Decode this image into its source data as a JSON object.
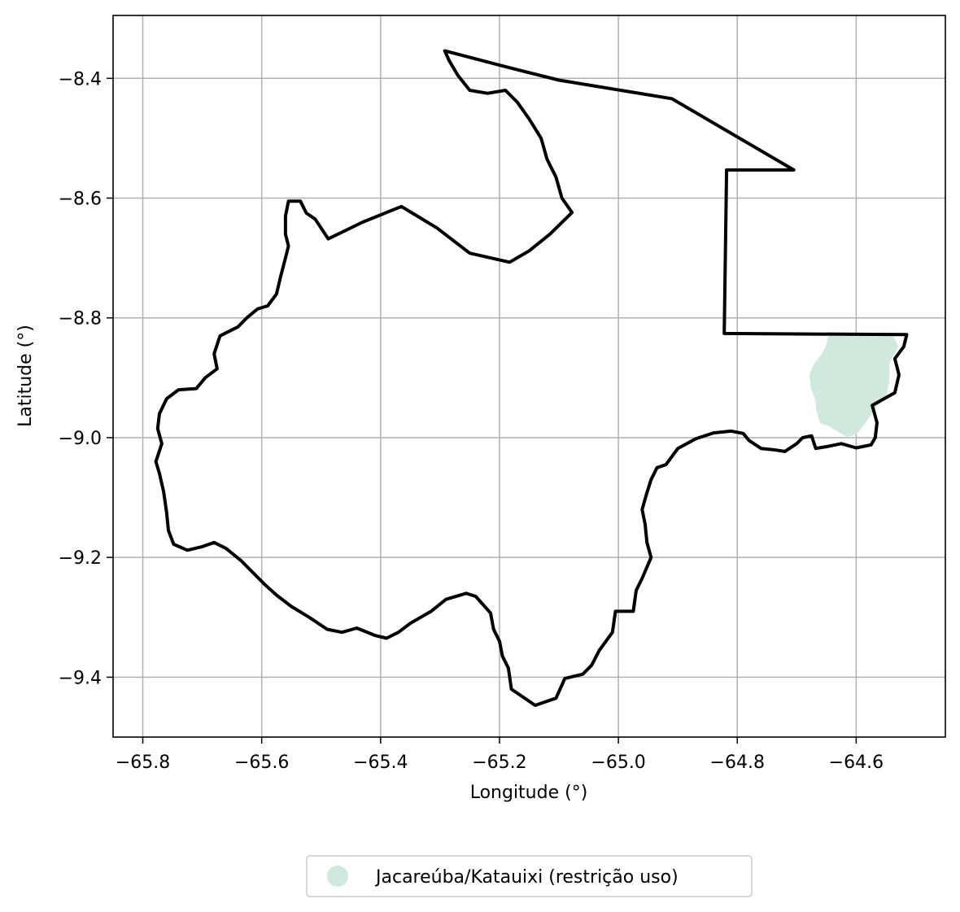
{
  "chart_data": {
    "type": "map",
    "title": "",
    "xlabel": "Longitude (°)",
    "ylabel": "Latitude (°)",
    "xlim": [
      -65.85,
      -64.45
    ],
    "ylim": [
      -9.5,
      -8.295
    ],
    "grid": true,
    "x_ticks": [
      -65.8,
      -65.6,
      -65.4,
      -65.2,
      -65.0,
      -64.8,
      -64.6
    ],
    "x_tick_labels": [
      "−65.8",
      "−65.6",
      "−65.4",
      "−65.2",
      "−65.0",
      "−64.8",
      "−64.6"
    ],
    "y_ticks": [
      -8.4,
      -8.6,
      -8.8,
      -9.0,
      -9.2,
      -9.4
    ],
    "y_tick_labels": [
      "−8.4",
      "−8.6",
      "−8.8",
      "−9.0",
      "−9.2",
      "−9.4"
    ],
    "legend": {
      "placement": "bottom-center, below plot",
      "entries": [
        {
          "label": "Jacareúba/Katauixi (restrição uso)",
          "color": "#cfeadc"
        }
      ]
    },
    "colors": {
      "boundary": "#000000",
      "area_fill": "#cfeadc",
      "grid": "#b0b0b0"
    },
    "layers": [
      {
        "name": "Jacareúba/Katauixi (restrição uso)",
        "kind": "filled-area",
        "color": "#cfeadc",
        "coords": [
          [
            -64.645,
            -8.827
          ],
          [
            -64.54,
            -8.828
          ],
          [
            -64.53,
            -8.848
          ],
          [
            -64.545,
            -8.875
          ],
          [
            -64.545,
            -8.905
          ],
          [
            -64.55,
            -8.93
          ],
          [
            -64.57,
            -8.952
          ],
          [
            -64.585,
            -8.975
          ],
          [
            -64.6,
            -8.993
          ],
          [
            -64.615,
            -8.998
          ],
          [
            -64.632,
            -8.988
          ],
          [
            -64.645,
            -8.98
          ],
          [
            -64.66,
            -8.975
          ],
          [
            -64.666,
            -8.955
          ],
          [
            -64.668,
            -8.935
          ],
          [
            -64.675,
            -8.918
          ],
          [
            -64.678,
            -8.895
          ],
          [
            -64.67,
            -8.877
          ],
          [
            -64.66,
            -8.865
          ],
          [
            -64.652,
            -8.852
          ],
          [
            -64.648,
            -8.84
          ]
        ]
      },
      {
        "name": "boundary",
        "kind": "outline",
        "color": "#000000",
        "coords": [
          [
            -65.292,
            -8.354
          ],
          [
            -65.2,
            -8.378
          ],
          [
            -65.1,
            -8.403
          ],
          [
            -64.91,
            -8.434
          ],
          [
            -64.705,
            -8.553
          ],
          [
            -64.818,
            -8.553
          ],
          [
            -64.822,
            -8.826
          ],
          [
            -64.515,
            -8.828
          ],
          [
            -64.52,
            -8.848
          ],
          [
            -64.535,
            -8.868
          ],
          [
            -64.528,
            -8.895
          ],
          [
            -64.535,
            -8.925
          ],
          [
            -64.573,
            -8.946
          ],
          [
            -64.565,
            -8.975
          ],
          [
            -64.568,
            -9.0
          ],
          [
            -64.575,
            -9.012
          ],
          [
            -64.6,
            -9.017
          ],
          [
            -64.625,
            -9.01
          ],
          [
            -64.65,
            -9.015
          ],
          [
            -64.668,
            -9.018
          ],
          [
            -64.675,
            -8.997
          ],
          [
            -64.69,
            -9.0
          ],
          [
            -64.7,
            -9.01
          ],
          [
            -64.72,
            -9.023
          ],
          [
            -64.74,
            -9.02
          ],
          [
            -64.76,
            -9.018
          ],
          [
            -64.78,
            -9.005
          ],
          [
            -64.79,
            -8.993
          ],
          [
            -64.81,
            -8.989
          ],
          [
            -64.84,
            -8.992
          ],
          [
            -64.87,
            -9.002
          ],
          [
            -64.9,
            -9.018
          ],
          [
            -64.92,
            -9.045
          ],
          [
            -64.935,
            -9.05
          ],
          [
            -64.945,
            -9.07
          ],
          [
            -64.953,
            -9.095
          ],
          [
            -64.96,
            -9.12
          ],
          [
            -64.955,
            -9.145
          ],
          [
            -64.952,
            -9.175
          ],
          [
            -64.945,
            -9.2
          ],
          [
            -64.96,
            -9.235
          ],
          [
            -64.97,
            -9.255
          ],
          [
            -64.975,
            -9.29
          ],
          [
            -65.005,
            -9.29
          ],
          [
            -65.01,
            -9.325
          ],
          [
            -65.032,
            -9.355
          ],
          [
            -65.045,
            -9.38
          ],
          [
            -65.06,
            -9.395
          ],
          [
            -65.09,
            -9.402
          ],
          [
            -65.105,
            -9.435
          ],
          [
            -65.14,
            -9.447
          ],
          [
            -65.165,
            -9.43
          ],
          [
            -65.18,
            -9.42
          ],
          [
            -65.185,
            -9.385
          ],
          [
            -65.195,
            -9.365
          ],
          [
            -65.2,
            -9.34
          ],
          [
            -65.21,
            -9.32
          ],
          [
            -65.215,
            -9.293
          ],
          [
            -65.24,
            -9.265
          ],
          [
            -65.256,
            -9.26
          ],
          [
            -65.29,
            -9.27
          ],
          [
            -65.315,
            -9.29
          ],
          [
            -65.35,
            -9.31
          ],
          [
            -65.37,
            -9.325
          ],
          [
            -65.39,
            -9.335
          ],
          [
            -65.41,
            -9.33
          ],
          [
            -65.44,
            -9.318
          ],
          [
            -65.465,
            -9.325
          ],
          [
            -65.49,
            -9.32
          ],
          [
            -65.52,
            -9.3
          ],
          [
            -65.55,
            -9.282
          ],
          [
            -65.575,
            -9.263
          ],
          [
            -65.595,
            -9.245
          ],
          [
            -65.615,
            -9.225
          ],
          [
            -65.635,
            -9.205
          ],
          [
            -65.66,
            -9.185
          ],
          [
            -65.68,
            -9.175
          ],
          [
            -65.7,
            -9.182
          ],
          [
            -65.725,
            -9.188
          ],
          [
            -65.748,
            -9.178
          ],
          [
            -65.757,
            -9.155
          ],
          [
            -65.76,
            -9.125
          ],
          [
            -65.765,
            -9.09
          ],
          [
            -65.772,
            -9.06
          ],
          [
            -65.778,
            -9.04
          ],
          [
            -65.768,
            -9.01
          ],
          [
            -65.775,
            -8.985
          ],
          [
            -65.772,
            -8.96
          ],
          [
            -65.76,
            -8.935
          ],
          [
            -65.74,
            -8.92
          ],
          [
            -65.71,
            -8.918
          ],
          [
            -65.695,
            -8.9
          ],
          [
            -65.675,
            -8.885
          ],
          [
            -65.68,
            -8.86
          ],
          [
            -65.67,
            -8.83
          ],
          [
            -65.64,
            -8.815
          ],
          [
            -65.625,
            -8.8
          ],
          [
            -65.607,
            -8.785
          ],
          [
            -65.59,
            -8.78
          ],
          [
            -65.575,
            -8.76
          ],
          [
            -65.568,
            -8.73
          ],
          [
            -65.56,
            -8.7
          ],
          [
            -65.555,
            -8.68
          ],
          [
            -65.56,
            -8.66
          ],
          [
            -65.56,
            -8.63
          ],
          [
            -65.555,
            -8.605
          ],
          [
            -65.535,
            -8.605
          ],
          [
            -65.525,
            -8.625
          ],
          [
            -65.51,
            -8.635
          ],
          [
            -65.5,
            -8.65
          ],
          [
            -65.488,
            -8.668
          ],
          [
            -65.43,
            -8.64
          ],
          [
            -65.365,
            -8.614
          ],
          [
            -65.305,
            -8.65
          ],
          [
            -65.25,
            -8.692
          ],
          [
            -65.183,
            -8.707
          ],
          [
            -65.15,
            -8.688
          ],
          [
            -65.115,
            -8.66
          ],
          [
            -65.078,
            -8.624
          ],
          [
            -65.095,
            -8.6
          ],
          [
            -65.105,
            -8.565
          ],
          [
            -65.12,
            -8.535
          ],
          [
            -65.13,
            -8.5
          ],
          [
            -65.15,
            -8.468
          ],
          [
            -65.17,
            -8.44
          ],
          [
            -65.19,
            -8.42
          ],
          [
            -65.22,
            -8.425
          ],
          [
            -65.25,
            -8.42
          ],
          [
            -65.27,
            -8.395
          ],
          [
            -65.285,
            -8.37
          ],
          [
            -65.292,
            -8.354
          ]
        ]
      }
    ]
  }
}
